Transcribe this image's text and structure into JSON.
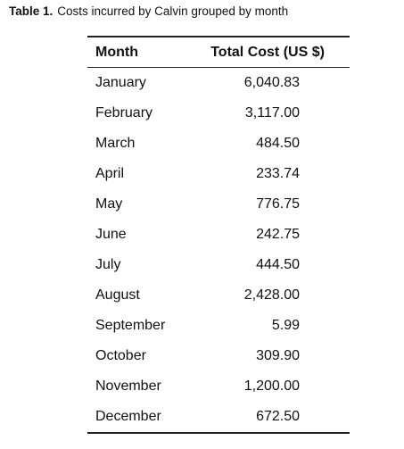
{
  "caption": {
    "label": "Table 1.",
    "text": "Costs incurred by Calvin grouped by month"
  },
  "table": {
    "headers": [
      "Month",
      "Total Cost (US $)"
    ],
    "rows": [
      [
        "January",
        "6,040.83"
      ],
      [
        "February",
        "3,117.00"
      ],
      [
        "March",
        "484.50"
      ],
      [
        "April",
        "233.74"
      ],
      [
        "May",
        "776.75"
      ],
      [
        "June",
        "242.75"
      ],
      [
        "July",
        "444.50"
      ],
      [
        "August",
        "2,428.00"
      ],
      [
        "September",
        "5.99"
      ],
      [
        "October",
        "309.90"
      ],
      [
        "November",
        "1,200.00"
      ],
      [
        "December",
        "672.50"
      ]
    ]
  }
}
